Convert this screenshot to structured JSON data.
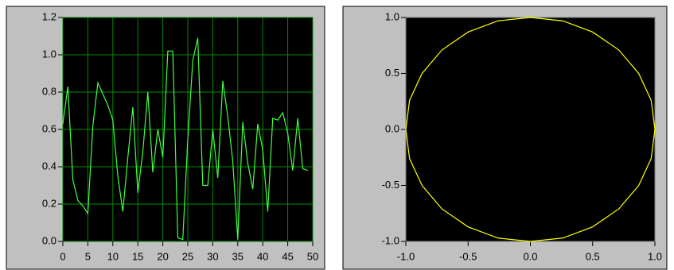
{
  "chart_data": [
    {
      "type": "line",
      "x": [
        0,
        1,
        2,
        3,
        4,
        5,
        6,
        7,
        8,
        9,
        10,
        11,
        12,
        13,
        14,
        15,
        16,
        17,
        18,
        19,
        20,
        21,
        22,
        23,
        24,
        25,
        26,
        27,
        28,
        29,
        30,
        31,
        32,
        33,
        34,
        35,
        36,
        37,
        38,
        39,
        40,
        41,
        42,
        43,
        44,
        45,
        46,
        47,
        48,
        49
      ],
      "values": [
        0.63,
        0.83,
        0.33,
        0.22,
        0.19,
        0.15,
        0.62,
        0.85,
        0.79,
        0.73,
        0.65,
        0.35,
        0.16,
        0.45,
        0.72,
        0.26,
        0.48,
        0.8,
        0.37,
        0.6,
        0.45,
        1.02,
        1.02,
        0.02,
        0.01,
        0.55,
        0.97,
        1.09,
        0.3,
        0.3,
        0.6,
        0.34,
        0.86,
        0.67,
        0.43,
        0.01,
        0.64,
        0.42,
        0.28,
        0.63,
        0.49,
        0.16,
        0.66,
        0.65,
        0.69,
        0.58,
        0.38,
        0.66,
        0.39,
        0.38
      ],
      "color": "#40ff40",
      "xlim": [
        0,
        50
      ],
      "xticks": [
        0,
        5,
        10,
        15,
        20,
        25,
        30,
        35,
        40,
        45,
        50
      ],
      "ylim": [
        0,
        1.2
      ],
      "yticks": [
        {
          "value": 0,
          "label": "0.0"
        },
        0.2,
        0.4,
        0.6,
        0.8,
        {
          "value": 1,
          "label": "1.0"
        },
        1.2
      ],
      "grid": true,
      "grid_color": "#008c00"
    },
    {
      "type": "line",
      "x": [
        1,
        0.97,
        0.87,
        0.71,
        0.5,
        0.26,
        0,
        -0.26,
        -0.5,
        -0.71,
        -0.87,
        -0.97,
        -1,
        -0.97,
        -0.87,
        -0.71,
        -0.5,
        -0.26,
        0,
        0.26,
        0.5,
        0.71,
        0.87,
        0.97,
        1
      ],
      "values": [
        0,
        0.26,
        0.5,
        0.71,
        0.87,
        0.97,
        1,
        0.97,
        0.87,
        0.71,
        0.5,
        0.26,
        0,
        -0.26,
        -0.5,
        -0.71,
        -0.87,
        -0.97,
        -1,
        -0.97,
        -0.87,
        -0.71,
        -0.5,
        -0.26,
        0
      ],
      "color": "#ffff00",
      "xlim": [
        -1,
        1
      ],
      "xticks": [
        {
          "value": -1,
          "label": "-1.0"
        },
        -0.5,
        {
          "value": 0,
          "label": "0.0"
        },
        0.5,
        {
          "value": 1,
          "label": "1.0"
        }
      ],
      "ylim": [
        -1,
        1
      ],
      "yticks": [
        {
          "value": -1,
          "label": "-1.0"
        },
        -0.5,
        {
          "value": 0,
          "label": "0.0"
        },
        0.5,
        {
          "value": 1,
          "label": "1.0"
        }
      ],
      "grid": false
    }
  ]
}
